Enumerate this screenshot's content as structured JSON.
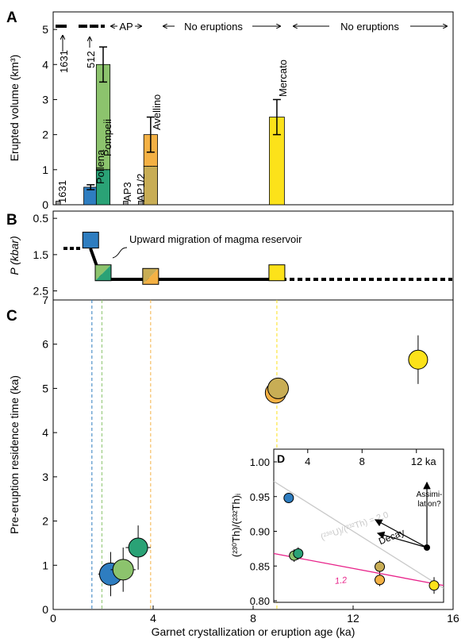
{
  "colors": {
    "blue": "#2e7dc0",
    "green_light": "#8cc36d",
    "green_teal": "#2aa276",
    "orange": "#f4b144",
    "olive": "#c8ad55",
    "yellow": "#fce21a",
    "gray": "#9a9a9a",
    "grid": "#999999",
    "magenta": "#e8238a"
  },
  "chart_data": [
    {
      "panel": "A",
      "type": "bar",
      "ylabel": "Erupted volume (km³)",
      "ylim": [
        0,
        5.5
      ],
      "yticks": [
        "0",
        "1",
        "2",
        "3",
        "4",
        "5"
      ],
      "xlim": [
        0,
        16
      ],
      "bars": [
        {
          "label": "1631",
          "x": 0.2,
          "width": 0.18,
          "value": 0.1,
          "color": "#9a9a9a"
        },
        {
          "label": "Pollena",
          "x": 1.5,
          "width": 0.55,
          "value": 0.5,
          "err": 0.07,
          "color": "#2e7dc0"
        },
        {
          "label": "Pompeii",
          "x": 2.0,
          "width": 0.55,
          "value": 4.0,
          "err": 0.5,
          "color": "#8cc36d",
          "lower_value": 1.0,
          "lower_color": "#2aa276"
        },
        {
          "label": "AP3",
          "x": 2.9,
          "width": 0.18,
          "value": 0.1,
          "color": "#9a9a9a"
        },
        {
          "label": "AP1/2",
          "x": 3.5,
          "width": 0.18,
          "value": 0.1,
          "color": "#9a9a9a"
        },
        {
          "label": "Avellino",
          "x": 3.9,
          "width": 0.55,
          "value": 2.0,
          "err": 0.5,
          "color": "#f4b144",
          "lower_value": 1.1,
          "lower_color": "#c8ad55"
        },
        {
          "label": "Mercato",
          "x": 8.95,
          "width": 0.6,
          "value": 2.5,
          "err": 0.5,
          "color": "#fce21a"
        }
      ],
      "annotations": [
        {
          "text": "1631",
          "kind": "arrow-label"
        },
        {
          "text": "512",
          "kind": "arrow-label"
        },
        {
          "text": "AP",
          "from": 2.1,
          "to": 3.7
        },
        {
          "text": "No eruptions",
          "from": 4.2,
          "to": 8.2
        },
        {
          "text": "No eruptions",
          "from": 9.7,
          "to": 15.8
        }
      ]
    },
    {
      "panel": "B",
      "type": "line",
      "ylabel": "P (kbar)",
      "ylim": [
        0.3,
        2.75
      ],
      "yticks": [
        "0.5",
        "1.5",
        "2.5"
      ],
      "markers": [
        {
          "x": 1.5,
          "p": 1.1,
          "color": "#2e7dc0"
        },
        {
          "x": 2.0,
          "p": 2.0,
          "color": "#2aa276",
          "second_color": "#8cc36d"
        },
        {
          "x": 3.9,
          "p": 2.1,
          "color": "#f4b144",
          "second_color": "#c8ad55"
        },
        {
          "x": 8.95,
          "p": 2.0,
          "color": "#fce21a"
        }
      ],
      "annotation": "Upward migration of magma reservoir"
    },
    {
      "panel": "C",
      "type": "scatter",
      "xlabel": "Garnet crystallization or eruption age (ka)",
      "ylabel": "Pre-eruption residence time (ka)",
      "xlim": [
        0,
        16
      ],
      "ylim": [
        0,
        7
      ],
      "xticks": [
        "0",
        "4",
        "8",
        "12",
        "16"
      ],
      "yticks": [
        "0",
        "1",
        "2",
        "3",
        "4",
        "5",
        "6",
        "7"
      ],
      "points": [
        {
          "x": 2.3,
          "y": 0.8,
          "xerr": 0.5,
          "yerr": 0.5,
          "r": 14,
          "color": "#2e7dc0"
        },
        {
          "x": 2.8,
          "y": 0.9,
          "xerr": 0.5,
          "yerr": 0.5,
          "r": 13,
          "color": "#8cc36d"
        },
        {
          "x": 3.4,
          "y": 1.4,
          "xerr": 0.5,
          "yerr": 0.5,
          "r": 12,
          "color": "#2aa276"
        },
        {
          "x": 8.9,
          "y": 4.9,
          "r": 13,
          "color": "#f4b144"
        },
        {
          "x": 9.0,
          "y": 5.0,
          "r": 13,
          "color": "#c8ad55"
        },
        {
          "x": 14.6,
          "y": 5.65,
          "xerr": 0.35,
          "yerr": 0.55,
          "r": 12,
          "color": "#fce21a"
        }
      ],
      "vlines": [
        {
          "x": 1.55,
          "color": "#2e7dc0"
        },
        {
          "x": 1.95,
          "color": "#8cc36d"
        },
        {
          "x": 3.9,
          "color": "#f4b144"
        },
        {
          "x": 8.95,
          "color": "#fce21a"
        }
      ]
    },
    {
      "panel": "D",
      "type": "scatter",
      "ylabel": "(²³⁰Th)/(²³²Th)ᵢ",
      "xticks": [
        "4",
        "8",
        "12 ka"
      ],
      "xlim": [
        1.5,
        14
      ],
      "ylim": [
        0.8,
        1.0
      ],
      "yticks": [
        "0.80",
        "0.85",
        "0.90",
        "0.95",
        "1.00"
      ],
      "points": [
        {
          "x": 2.6,
          "y": 0.948,
          "color": "#2e7dc0",
          "err": 0.007
        },
        {
          "x": 3.0,
          "y": 0.865,
          "color": "#8cc36d",
          "err": 0.009
        },
        {
          "x": 3.3,
          "y": 0.868,
          "color": "#2aa276",
          "err": 0.009
        },
        {
          "x": 9.3,
          "y": 0.849,
          "color": "#c8ad55",
          "err": 0.009
        },
        {
          "x": 9.3,
          "y": 0.83,
          "color": "#f4b144",
          "err": 0.009
        },
        {
          "x": 13.3,
          "y": 0.822,
          "color": "#fce21a",
          "err": 0.012
        }
      ],
      "lines": [
        {
          "label": "(²³⁸U)/(²³²Th) = 2.0",
          "color": "#c8c8c8",
          "from": [
            1.5,
            0.972
          ],
          "to": [
            14,
            0.818
          ]
        },
        {
          "label": "1.2",
          "color": "#e8238a",
          "from": [
            1.5,
            0.868
          ],
          "to": [
            14,
            0.822
          ]
        }
      ],
      "arrows": [
        "Decay",
        "Assimi-\nlation?"
      ],
      "source_point": {
        "x": 13.2,
        "y": 0.894
      }
    }
  ],
  "labels": {
    "panel_a": "A",
    "panel_b": "B",
    "panel_c": "C",
    "panel_d": "D",
    "ap": "AP",
    "no_eruptions_1": "No eruptions",
    "no_eruptions_2": "No eruptions",
    "label_1631_top": "1631",
    "label_512": "512",
    "label_pollena": "Pollena",
    "label_pompeii": "Pompeii",
    "label_ap3": "AP3",
    "label_ap12": "AP1/2",
    "label_avellino": "Avellino",
    "label_mercato": "Mercato",
    "label_1631_bottom": "1631",
    "ylabel_a": "Erupted volume (km³)",
    "ylabel_b": "P (kbar)",
    "ylabel_c": "Pre-eruption residence time (ka)",
    "xlabel_c": "Garnet crystallization or eruption age (ka)",
    "annotation_b": "Upward migration of magma reservoir",
    "d_ylabel": "(²³⁰Th)/(²³²Th)ᵢ",
    "d_line_20": "(²³⁸U)/(²³²Th) = 2.0",
    "d_line_12": "1.2",
    "d_decay": "Decay",
    "d_assim_1": "Assimi-",
    "d_assim_2": "lation?",
    "d_x4": "4",
    "d_x8": "8",
    "d_x12": "12 ka"
  }
}
